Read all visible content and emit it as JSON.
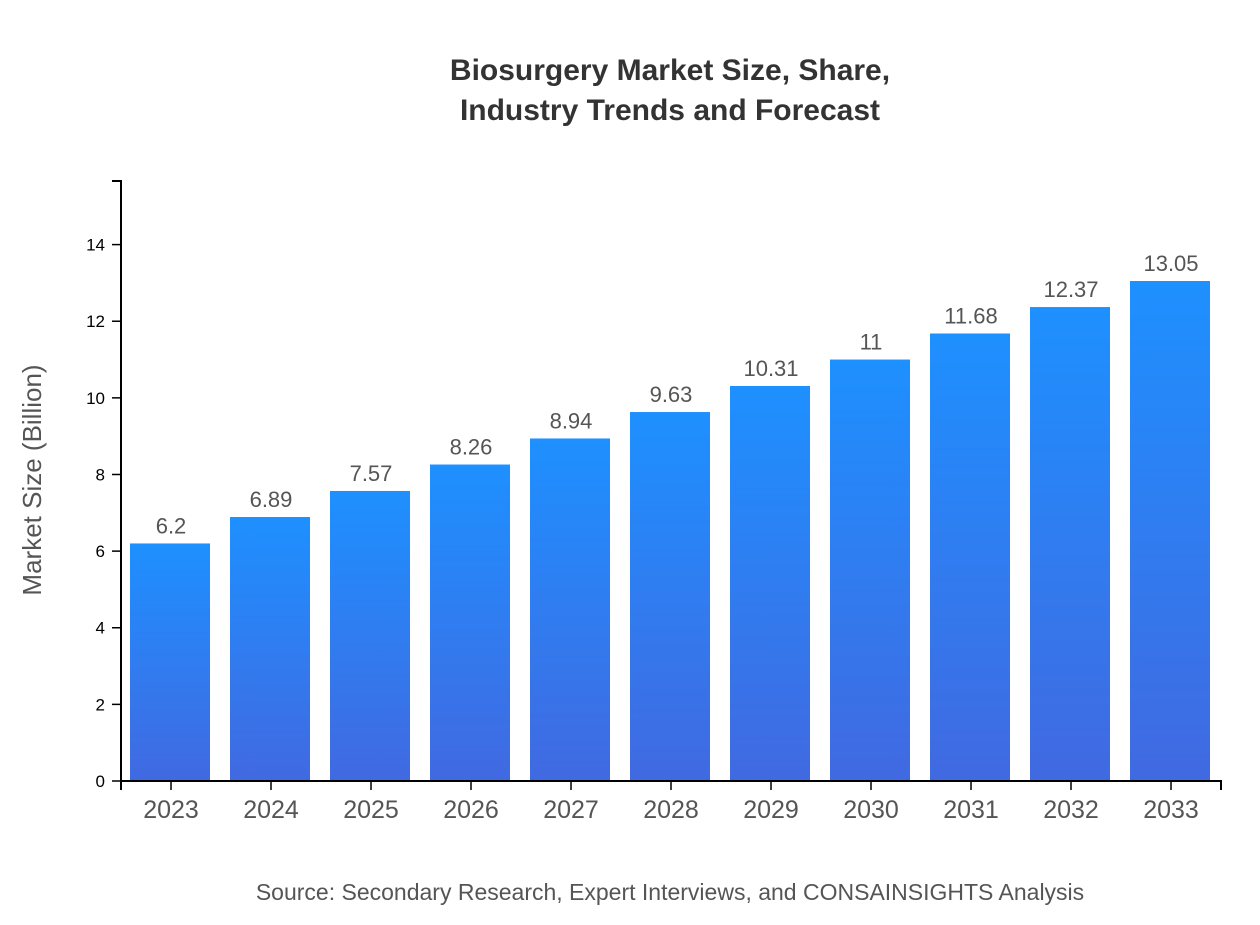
{
  "chart_data": {
    "type": "bar",
    "title_lines": [
      "Biosurgery Market Size, Share,",
      "Industry Trends and Forecast"
    ],
    "ylabel": "Market Size (Billion)",
    "xlabel": "",
    "categories": [
      "2023",
      "2024",
      "2025",
      "2026",
      "2027",
      "2028",
      "2029",
      "2030",
      "2031",
      "2032",
      "2033"
    ],
    "values": [
      6.2,
      6.89,
      7.57,
      8.26,
      8.94,
      9.63,
      10.31,
      11,
      11.68,
      12.37,
      13.05
    ],
    "value_labels": [
      "6.2",
      "6.89",
      "7.57",
      "8.26",
      "8.94",
      "9.63",
      "10.31",
      "11",
      "11.68",
      "12.37",
      "13.05"
    ],
    "ylim": [
      0,
      15.66
    ],
    "yticks": [
      0,
      2,
      4,
      6,
      8,
      10,
      12,
      14
    ],
    "grid": false,
    "legend": "none",
    "colors": {
      "bar_top": "#1e90ff",
      "bar_bottom": "#4169e1",
      "text": "#555555",
      "title": "#333333"
    },
    "source": "Source: Secondary Research, Expert Interviews, and CONSAINSIGHTS Analysis"
  }
}
